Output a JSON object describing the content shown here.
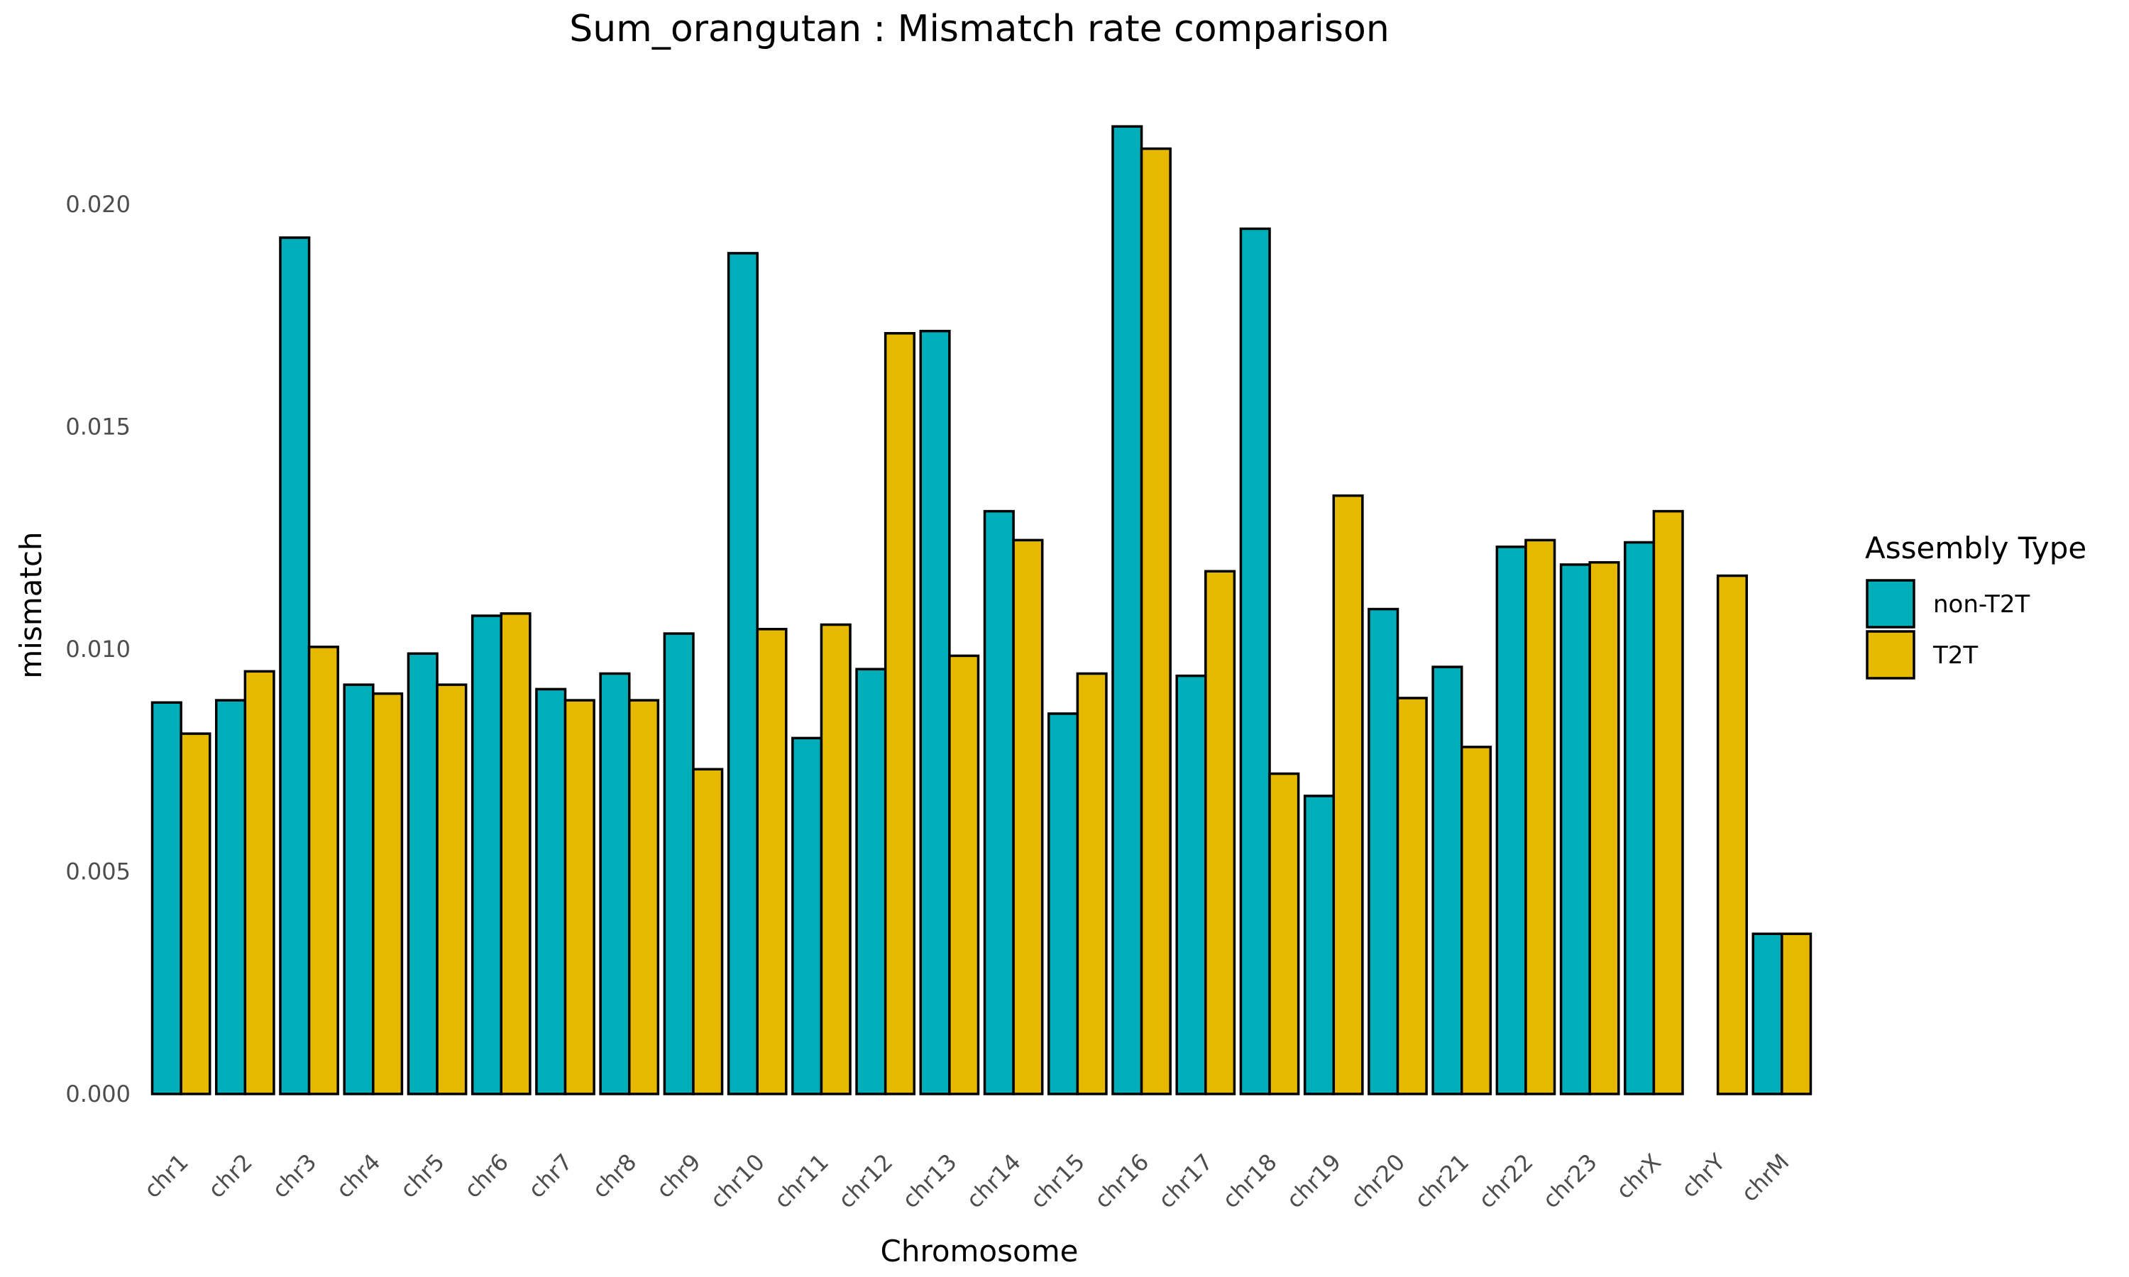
{
  "chart_data": {
    "type": "bar",
    "title": "Sum_orangutan : Mismatch rate comparison",
    "xlabel": "Chromosome",
    "ylabel": "mismatch",
    "ylim": [
      0,
      0.0222
    ],
    "yticks": [
      "0.000",
      "0.005",
      "0.010",
      "0.015",
      "0.020"
    ],
    "ytick_values": [
      0,
      0.005,
      0.01,
      0.015,
      0.02
    ],
    "grid": false,
    "legend_position": "right",
    "legend_title": "Assembly Type",
    "categories": [
      "chr1",
      "chr2",
      "chr3",
      "chr4",
      "chr5",
      "chr6",
      "chr7",
      "chr8",
      "chr9",
      "chr10",
      "chr11",
      "chr12",
      "chr13",
      "chr14",
      "chr15",
      "chr16",
      "chr17",
      "chr18",
      "chr19",
      "chr20",
      "chr21",
      "chr22",
      "chr23",
      "chrX",
      "chrY",
      "chrM"
    ],
    "series": [
      {
        "name": "non-T2T",
        "color": "#00AEBA",
        "values": [
          0.0088,
          0.00885,
          0.01925,
          0.0092,
          0.0099,
          0.01075,
          0.0091,
          0.00945,
          0.01035,
          0.0189,
          0.008,
          0.00955,
          0.01715,
          0.0131,
          0.00855,
          0.02175,
          0.0094,
          0.01945,
          0.0067,
          0.0109,
          0.0096,
          0.0123,
          0.0119,
          0.0124,
          0.0,
          0.0036
        ]
      },
      {
        "name": "T2T",
        "color": "#E7B800",
        "values": [
          0.0081,
          0.0095,
          0.01005,
          0.009,
          0.0092,
          0.0108,
          0.00885,
          0.00885,
          0.0073,
          0.01045,
          0.01055,
          0.0171,
          0.00985,
          0.01245,
          0.00945,
          0.02125,
          0.01175,
          0.0072,
          0.01345,
          0.0089,
          0.0078,
          0.01245,
          0.01195,
          0.0131,
          0.01165,
          0.0036
        ]
      }
    ]
  }
}
